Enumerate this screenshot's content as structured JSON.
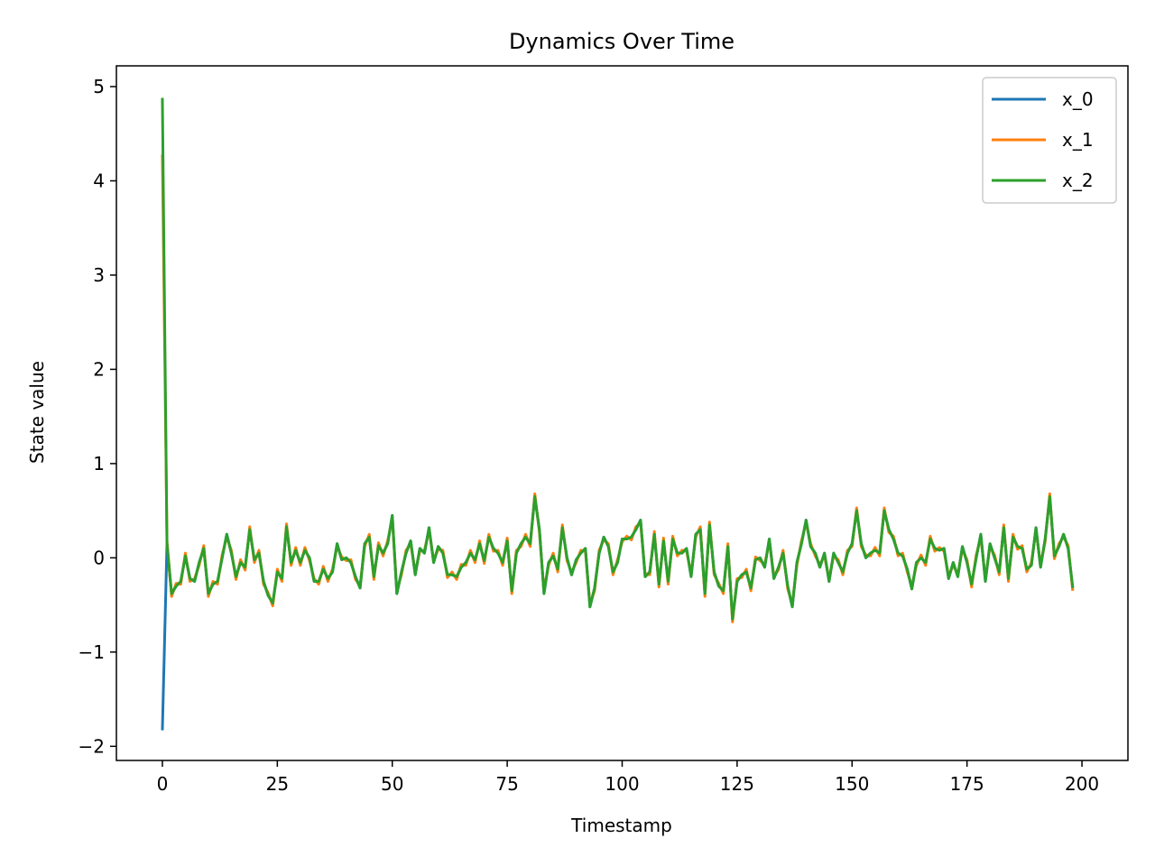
{
  "chart_data": {
    "type": "line",
    "title": "Dynamics Over Time",
    "xlabel": "Timestamp",
    "ylabel": "State value",
    "xlim": [
      -10,
      210
    ],
    "ylim": [
      -2.15,
      5.22
    ],
    "xticks": [
      0,
      25,
      50,
      75,
      100,
      125,
      150,
      175,
      200
    ],
    "yticks": [
      -2,
      -1,
      0,
      1,
      2,
      3,
      4,
      5
    ],
    "xtick_labels": [
      "0",
      "25",
      "50",
      "75",
      "100",
      "125",
      "150",
      "175",
      "200"
    ],
    "ytick_labels": [
      "−2",
      "−1",
      "0",
      "1",
      "2",
      "3",
      "4",
      "5"
    ],
    "grid": false,
    "legend_position": "top-right",
    "base": [
      0.45,
      0.15,
      -0.38,
      -0.3,
      -0.25,
      0.02,
      -0.22,
      -0.25,
      -0.05,
      0.1,
      -0.38,
      -0.28,
      -0.25,
      0.0,
      0.25,
      0.05,
      -0.2,
      -0.05,
      -0.1,
      0.3,
      -0.02,
      0.05,
      -0.25,
      -0.4,
      -0.48,
      -0.15,
      -0.22,
      0.33,
      -0.05,
      0.08,
      -0.05,
      0.08,
      0.0,
      -0.25,
      -0.25,
      -0.12,
      -0.22,
      -0.15,
      0.15,
      -0.02,
      0.0,
      -0.05,
      -0.2,
      -0.32,
      0.15,
      0.22,
      -0.2,
      0.13,
      0.05,
      0.15,
      0.45,
      -0.38,
      -0.15,
      0.05,
      0.18,
      -0.18,
      0.1,
      0.05,
      0.32,
      -0.05,
      0.12,
      0.05,
      -0.18,
      -0.18,
      -0.2,
      -0.1,
      -0.05,
      0.05,
      -0.02,
      0.15,
      -0.03,
      0.22,
      0.1,
      0.05,
      -0.05,
      0.18,
      -0.35,
      0.05,
      0.15,
      0.22,
      0.15,
      0.65,
      0.3,
      -0.38,
      -0.05,
      0.02,
      -0.12,
      0.32,
      0.0,
      -0.18,
      -0.02,
      0.05,
      0.1,
      -0.52,
      -0.32,
      0.05,
      0.22,
      0.12,
      -0.15,
      -0.05,
      0.2,
      0.2,
      0.22,
      0.3,
      0.4,
      -0.2,
      -0.15,
      0.25,
      -0.28,
      0.18,
      -0.25,
      0.2,
      0.05,
      0.05,
      0.1,
      -0.2,
      0.25,
      0.3,
      -0.38,
      0.35,
      -0.15,
      -0.3,
      -0.35,
      0.12,
      -0.65,
      -0.25,
      -0.18,
      -0.15,
      -0.32,
      -0.02,
      0.0,
      -0.1,
      0.2,
      -0.22,
      -0.1,
      0.05,
      -0.3,
      -0.52,
      -0.05,
      0.15,
      0.4,
      0.12,
      0.05,
      -0.1,
      0.05,
      -0.25,
      0.05,
      -0.05,
      -0.15,
      0.05,
      0.15,
      0.5,
      0.15,
      0.0,
      0.05,
      0.08,
      0.05,
      0.5,
      0.3,
      0.2,
      0.05,
      0.02,
      -0.12,
      -0.33,
      -0.05,
      0.0,
      -0.05,
      0.2,
      0.1,
      0.08,
      0.1,
      -0.22,
      -0.05,
      -0.2,
      0.12,
      -0.05,
      -0.28,
      0.0,
      0.25,
      -0.25,
      0.15,
      0.0,
      -0.15,
      0.32,
      -0.22,
      0.22,
      0.12,
      0.1,
      -0.12,
      -0.08,
      0.32,
      -0.1,
      0.2,
      0.65,
      0.02,
      0.12,
      0.25,
      0.1,
      -0.32
    ],
    "series": [
      {
        "name": "x_0",
        "color": "#1f77b4",
        "start": -1.83
      },
      {
        "name": "x_1",
        "color": "#ff7f0e",
        "start": 4.28,
        "offset": 0.03
      },
      {
        "name": "x_2",
        "color": "#2ca02c",
        "start": 4.88
      }
    ]
  }
}
